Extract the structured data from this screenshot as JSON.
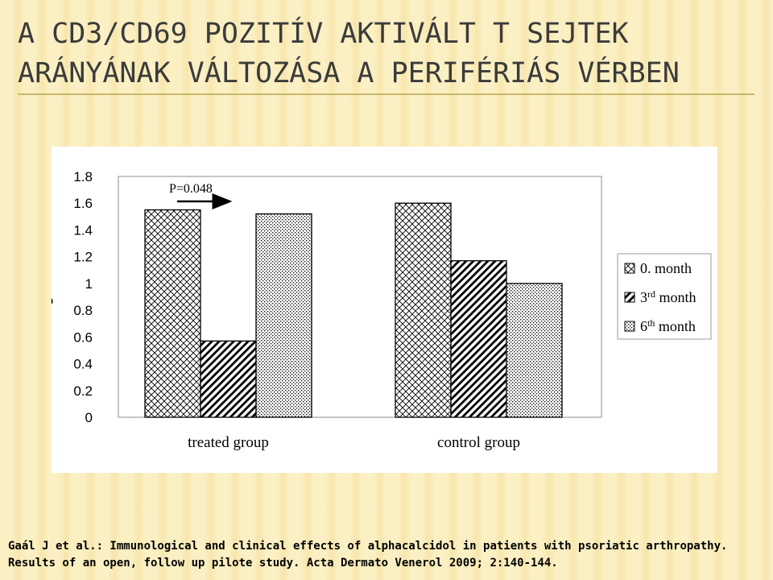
{
  "slide": {
    "title_line1": "A CD3/CD69 POZITÍV AKTIVÁLT T SEJTEK",
    "title_line2": "ARÁNYÁNAK VÁLTOZÁSA A PERIFÉRIÁS VÉRBEN",
    "citation_line1": "Gaál J et al.: Immunological and clinical effects of alphacalcidol in patients with psoriatic arthropathy.",
    "citation_line2": "Results of an open, follow up pilote study. Acta Dermato Venerol 2009; 2:140-144."
  },
  "chart_data": {
    "type": "bar",
    "ylabel": "%",
    "ylim": [
      0,
      1.8
    ],
    "yticks": [
      "0",
      "0.2",
      "0.4",
      "0.6",
      "0.8",
      "1",
      "1.2",
      "1.4",
      "1.6",
      "1.8"
    ],
    "categories": [
      "treated group",
      "control group"
    ],
    "series": [
      {
        "name": "0. month",
        "values": [
          1.55,
          1.6
        ],
        "pattern": "cross"
      },
      {
        "name": "3rd month",
        "values": [
          0.57,
          1.17
        ],
        "pattern": "diagonal"
      },
      {
        "name": "6th month",
        "values": [
          1.52,
          1.0
        ],
        "pattern": "dots"
      }
    ],
    "annotation": "P=0.048",
    "legend_position": "right",
    "grid": false
  }
}
